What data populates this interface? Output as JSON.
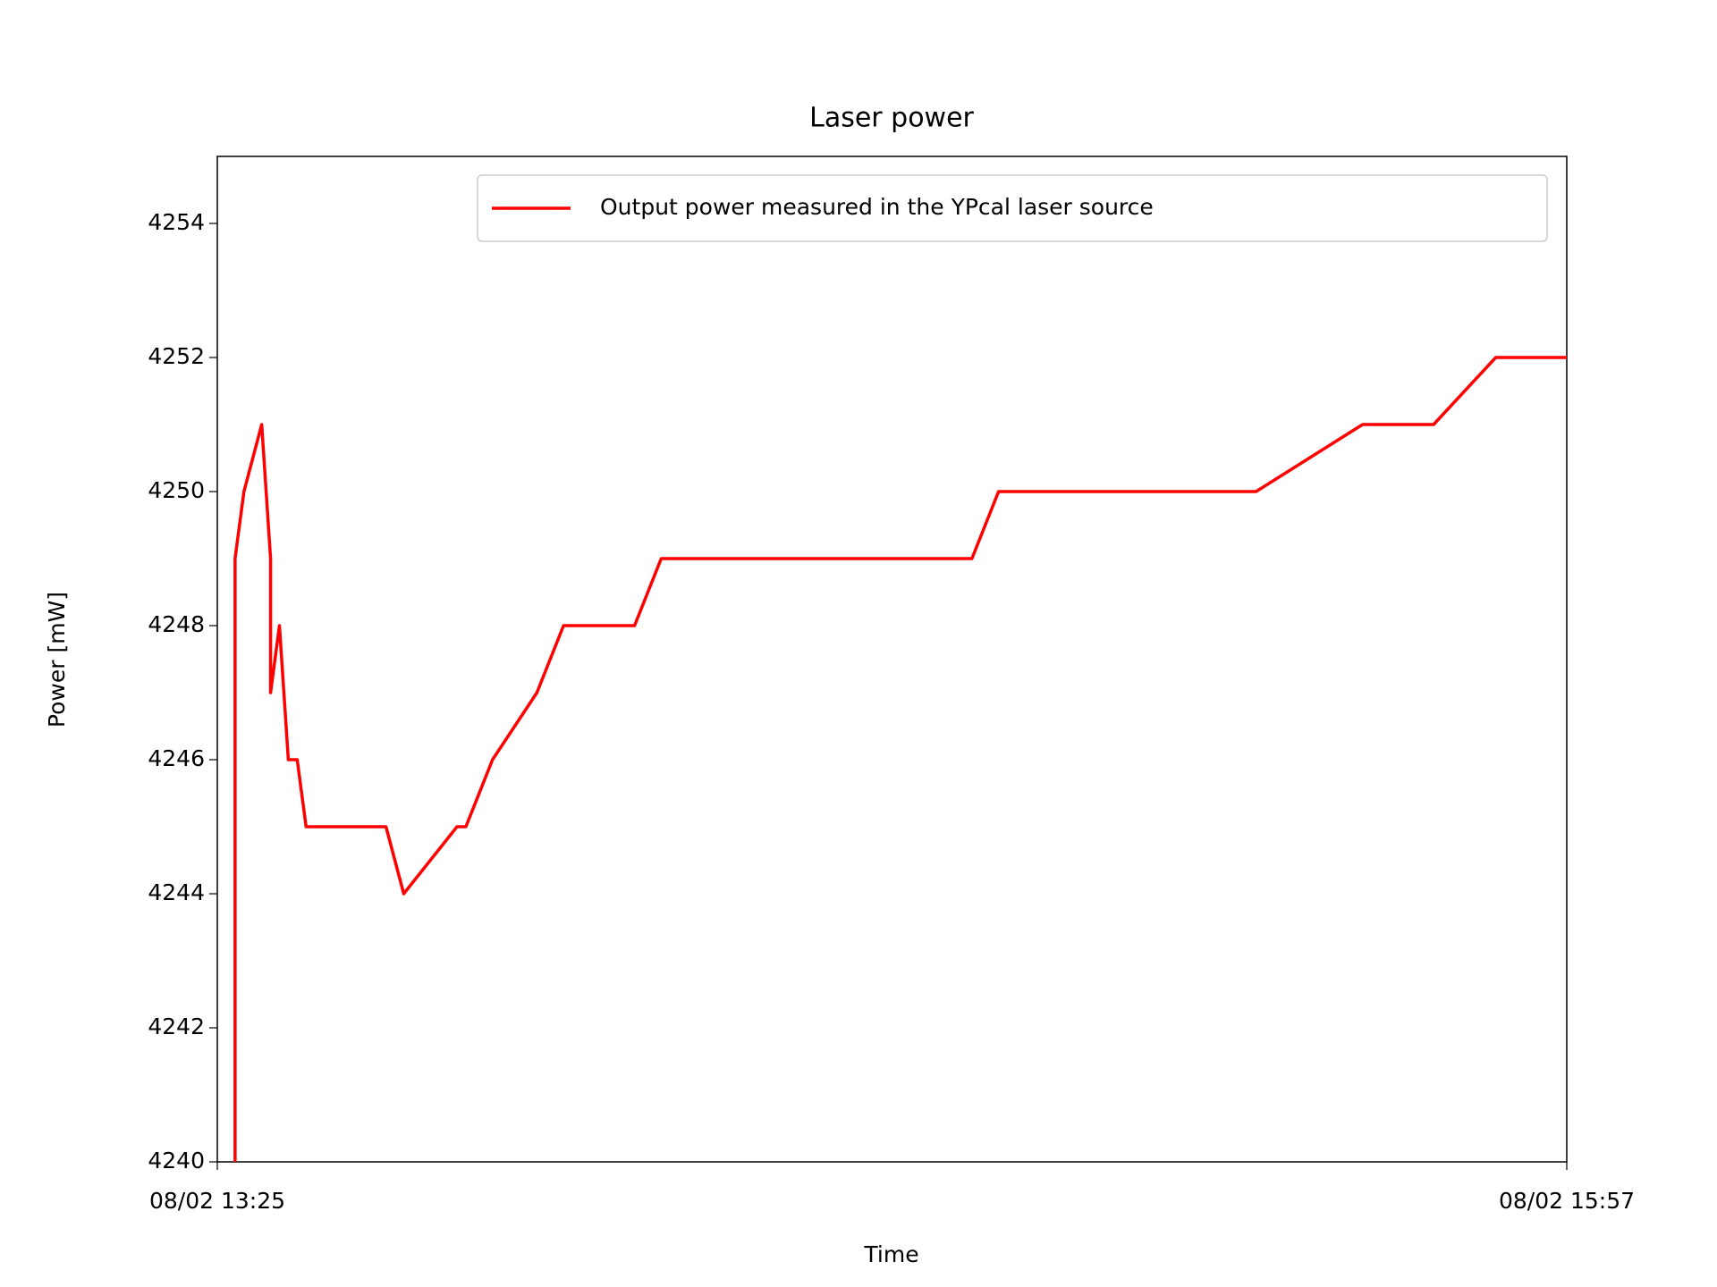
{
  "chart_data": {
    "type": "line",
    "title": "Laser power",
    "xlabel": "Time",
    "ylabel": "Power [mW]",
    "x": [
      "08/02 13:27",
      "08/02 13:27",
      "08/02 13:28",
      "08/02 13:28",
      "08/02 13:30",
      "08/02 13:31",
      "08/02 13:31",
      "08/02 13:32",
      "08/02 13:33",
      "08/02 13:34",
      "08/02 13:35",
      "08/02 13:44",
      "08/02 13:46",
      "08/02 13:46",
      "08/02 13:52",
      "08/02 13:53",
      "08/02 13:56",
      "08/02 14:01",
      "08/02 14:04",
      "08/02 14:12",
      "08/02 14:15",
      "08/02 14:50",
      "08/02 14:53",
      "08/02 15:22",
      "08/02 15:34",
      "08/02 15:42",
      "08/02 15:49",
      "08/02 15:57"
    ],
    "series": [
      {
        "name": "Output power measured in the YPcal laser source",
        "color": "#ff0000",
        "values": [
          4240,
          4249,
          4250,
          4250,
          4251,
          4249,
          4247,
          4248,
          4246,
          4246,
          4245,
          4245,
          4244,
          4244,
          4245,
          4245,
          4246,
          4247,
          4248,
          4248,
          4249,
          4249,
          4250,
          4250,
          4251,
          4251,
          4252,
          4252
        ]
      }
    ],
    "xlim": [
      "08/02 13:25",
      "08/02 15:57"
    ],
    "xticks": [
      "08/02 13:25",
      "08/02 15:57"
    ],
    "ylim": [
      4240,
      4255
    ],
    "yticks": [
      4240,
      4242,
      4244,
      4246,
      4248,
      4250,
      4252,
      4254
    ],
    "legend": "upper right",
    "grid": false
  }
}
